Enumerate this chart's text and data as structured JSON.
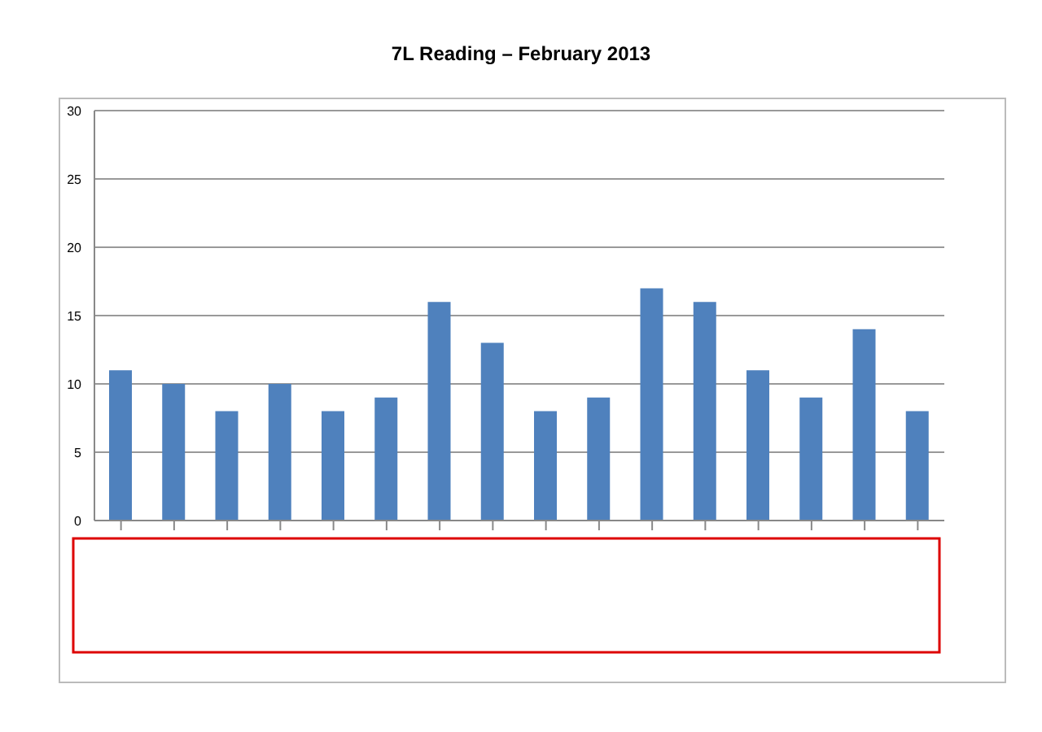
{
  "chart_data": {
    "type": "bar",
    "title": "7L Reading – February 2013",
    "categories": [
      null,
      null,
      null,
      null,
      null,
      null,
      null,
      null,
      null,
      null,
      null,
      null,
      null,
      null,
      null,
      null
    ],
    "values": [
      11,
      10,
      8,
      10,
      8,
      9,
      16,
      13,
      8,
      9,
      17,
      16,
      11,
      9,
      14,
      8
    ],
    "color": "#4f81bd",
    "ylim": [
      0,
      30
    ],
    "yticks": [
      0,
      5,
      10,
      15,
      20,
      25,
      30
    ],
    "grid": "y",
    "legend": false
  }
}
